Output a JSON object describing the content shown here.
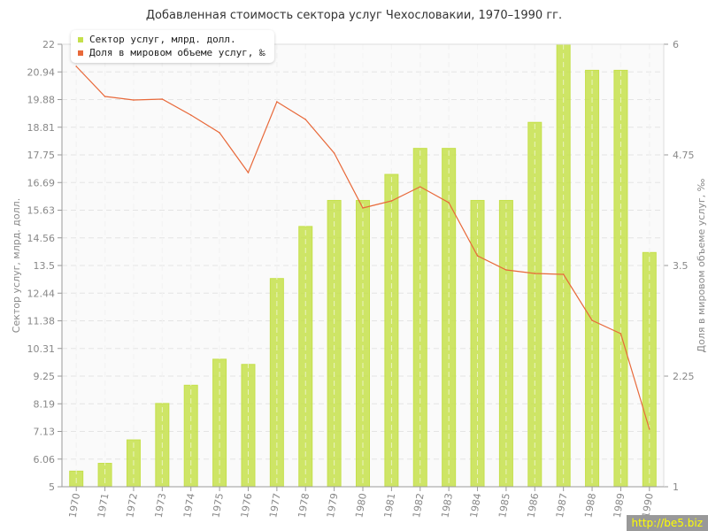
{
  "chart_data": {
    "type": "bar+line",
    "title": "Добавленная стоимость сектора услуг Чехословакии, 1970–1990 гг.",
    "categories": [
      "1970",
      "1971",
      "1972",
      "1973",
      "1974",
      "1975",
      "1976",
      "1977",
      "1978",
      "1979",
      "1980",
      "1981",
      "1982",
      "1983",
      "1984",
      "1985",
      "1986",
      "1987",
      "1988",
      "1989",
      "1990"
    ],
    "series": [
      {
        "name": "Сектор услуг, млрд. долл.",
        "type": "bar",
        "axis": "left",
        "color": "#c5e04b",
        "values": [
          5.6,
          5.9,
          6.8,
          8.2,
          8.9,
          9.9,
          9.7,
          13.0,
          15.0,
          16.0,
          16.0,
          17.0,
          18.0,
          18.0,
          16.0,
          16.0,
          19.0,
          22.0,
          21.0,
          21.0,
          14.0
        ]
      },
      {
        "name": "Доля в мировом объеме услуг, ‰",
        "type": "line",
        "axis": "right",
        "color": "#e8693a",
        "values": [
          5.75,
          5.41,
          5.37,
          5.38,
          5.2,
          5.0,
          4.55,
          5.35,
          5.15,
          4.77,
          4.15,
          4.23,
          4.39,
          4.21,
          3.61,
          3.45,
          3.41,
          3.4,
          2.88,
          2.73,
          1.65
        ]
      }
    ],
    "ylabel": "Сектор услуг, млрд. долл.",
    "y2label": "Доля в мировом объеме услуг, ‰",
    "ylim": [
      5,
      22
    ],
    "y2lim": [
      1,
      6
    ],
    "yticks": [
      "5",
      "6.06",
      "7.13",
      "8.19",
      "9.25",
      "10.31",
      "11.38",
      "12.44",
      "13.5",
      "14.56",
      "15.63",
      "16.69",
      "17.75",
      "18.81",
      "19.88",
      "20.94",
      "22"
    ],
    "y2ticks": [
      "1",
      "2.25",
      "3.5",
      "4.75",
      "6"
    ],
    "grid": true,
    "legend": "top-left"
  },
  "watermark": "http://be5.biz"
}
